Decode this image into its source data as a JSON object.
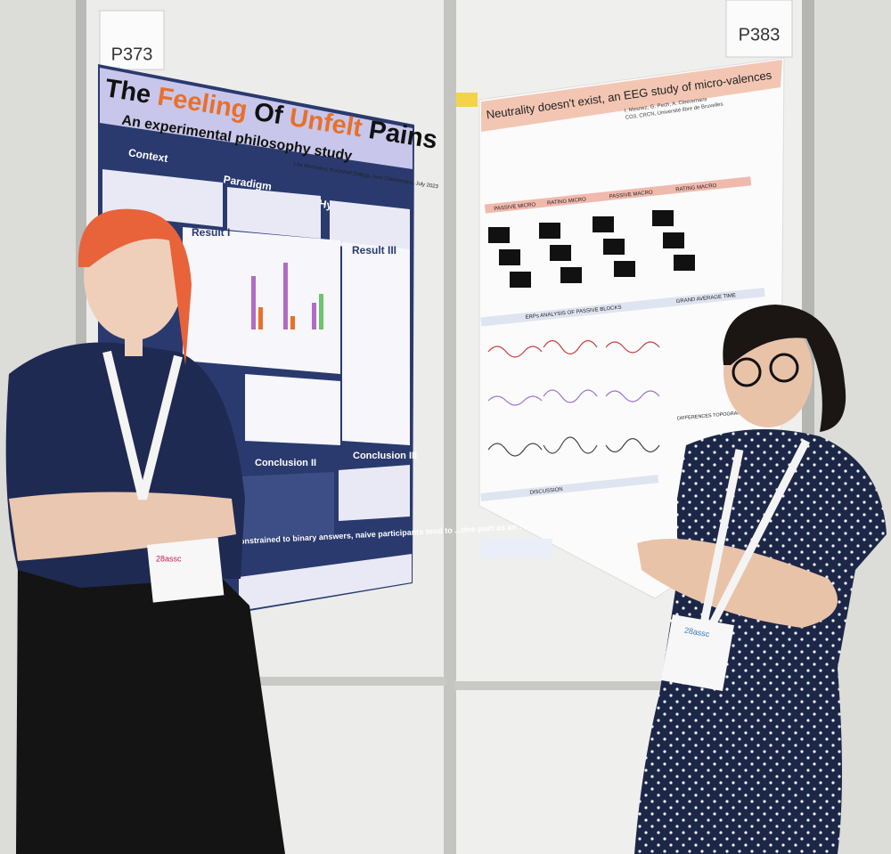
{
  "boards": {
    "left_number": "P373",
    "right_number": "P383"
  },
  "poster_left": {
    "title": [
      "The ",
      "Feeling",
      " Of ",
      "Unfelt",
      " Pains"
    ],
    "subtitle": "An experimental philosophy study",
    "authors": "Léa Moncoeur, Krzysztof Dołęga, Axel Cleeremans, July 2023",
    "sections": [
      "Context",
      "Paradigm",
      "Hypothesis",
      "Result I",
      "Result III",
      "Conclusion II",
      "Conclusion III"
    ],
    "footer": "...not constrained to binary answers, naive participants tend to ...tine pain as an intrinsically conscious phenomenon"
  },
  "poster_right": {
    "title": "Neutrality doesn't exist, an EEG study of micro-valences",
    "authors": "I. Mesnez, G. Pech, A. Cleeremans",
    "affiliation": "CO3, CRCN, Université libre de Bruxelles",
    "blocks": [
      "PASSIVE MICRO",
      "RATING MICRO",
      "PASSIVE MACRO",
      "RATING MACRO"
    ],
    "sections": [
      "ERPs ANALYSIS OF PASSIVE BLOCKS",
      "GRAND AVERAGE TIME",
      "DIFFERENCES TOPOGRAPHY",
      "DISCUSSION"
    ]
  },
  "badge": "28assc"
}
